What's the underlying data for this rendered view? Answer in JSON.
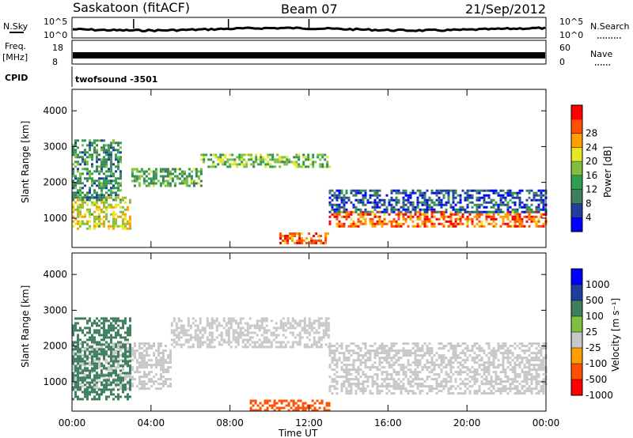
{
  "header": {
    "station": "Saskatoon (fitACF)",
    "beam": "Beam 07",
    "date": "21/Sep/2012"
  },
  "strip_labels": {
    "nsky": "N.Sky",
    "nsearch": "N.Search",
    "freq_top": "Freq.",
    "freq_bottom": "[MHz]",
    "nave": "Nave",
    "cpid": "CPID",
    "cpid_value": "twofsound -3501",
    "noise_ticks_left": [
      "10^5",
      "10^0"
    ],
    "noise_ticks_right": [
      "10^5",
      "10^0"
    ],
    "freq_ticks_left": [
      "18",
      "8"
    ],
    "nave_ticks_right": [
      "60",
      "0"
    ]
  },
  "colors": {
    "power": [
      "#0000ff",
      "#1f3f9f",
      "#3f7f5f",
      "#2fa04f",
      "#7fc03f",
      "#e6e622",
      "#ff9f00",
      "#ff4f00",
      "#ff0000"
    ],
    "velocity": [
      "#0000ff",
      "#1f3f9f",
      "#3f7f5f",
      "#7fc03f",
      "#c8c8c8",
      "#ff9f00",
      "#ff4f00",
      "#ff0000"
    ],
    "ground_scatter": "#c8c8c8",
    "frame": "#000000"
  },
  "chart_data": [
    {
      "type": "heatmap",
      "panel": "power",
      "xlabel": "Time UT",
      "ylabel": "Slant Range [km]",
      "xlim": [
        0,
        24
      ],
      "ylim": [
        180,
        4600
      ],
      "x_ticks": [
        "00:00",
        "04:00",
        "08:00",
        "12:00",
        "16:00",
        "20:00",
        "00:00"
      ],
      "y_ticks": [
        "1000",
        "2000",
        "3000",
        "4000"
      ],
      "colorbar_label": "Power [dB]",
      "colorbar_ticks": [
        "4",
        "8",
        "12",
        "16",
        "20",
        "24",
        "28"
      ],
      "scatter_bands": [
        {
          "t0": 0.0,
          "t1": 3.0,
          "r0": 700,
          "r1": 1600,
          "value": 20
        },
        {
          "t0": 0.0,
          "t1": 2.5,
          "r0": 1500,
          "r1": 3200,
          "value": 12
        },
        {
          "t0": 3.0,
          "t1": 6.5,
          "r0": 1900,
          "r1": 2400,
          "value": 14
        },
        {
          "t0": 6.5,
          "t1": 13.0,
          "r0": 2450,
          "r1": 2800,
          "value": 16
        },
        {
          "t0": 10.5,
          "t1": 13.0,
          "r0": 300,
          "r1": 600,
          "value": 26
        },
        {
          "t0": 13.0,
          "t1": 24.0,
          "r0": 750,
          "r1": 1200,
          "value": 26
        },
        {
          "t0": 13.0,
          "t1": 24.0,
          "r0": 1200,
          "r1": 1800,
          "value": 8
        }
      ]
    },
    {
      "type": "heatmap",
      "panel": "velocity",
      "xlabel": "Time UT",
      "ylabel": "Slant Range [km]",
      "xlim": [
        0,
        24
      ],
      "ylim": [
        180,
        4600
      ],
      "x_ticks": [
        "00:00",
        "04:00",
        "08:00",
        "12:00",
        "16:00",
        "20:00",
        "00:00"
      ],
      "y_ticks": [
        "1000",
        "2000",
        "3000",
        "4000"
      ],
      "colorbar_label": "Velocity [m s⁻¹]",
      "colorbar_ticks": [
        "1000",
        "500",
        "100",
        "25",
        "-25",
        "-100",
        "-500",
        "-1000"
      ],
      "scatter_bands": [
        {
          "t0": 0.0,
          "t1": 5.0,
          "r0": 800,
          "r1": 2100,
          "value": "ground"
        },
        {
          "t0": 5.0,
          "t1": 13.0,
          "r0": 2000,
          "r1": 2800,
          "value": "ground"
        },
        {
          "t0": 13.0,
          "t1": 24.0,
          "r0": 700,
          "r1": 2100,
          "value": "ground"
        },
        {
          "t0": 0.0,
          "t1": 3.0,
          "r0": 500,
          "r1": 2800,
          "value": 300
        },
        {
          "t0": 9.0,
          "t1": 13.0,
          "r0": 200,
          "r1": 500,
          "value": -150
        }
      ]
    }
  ]
}
